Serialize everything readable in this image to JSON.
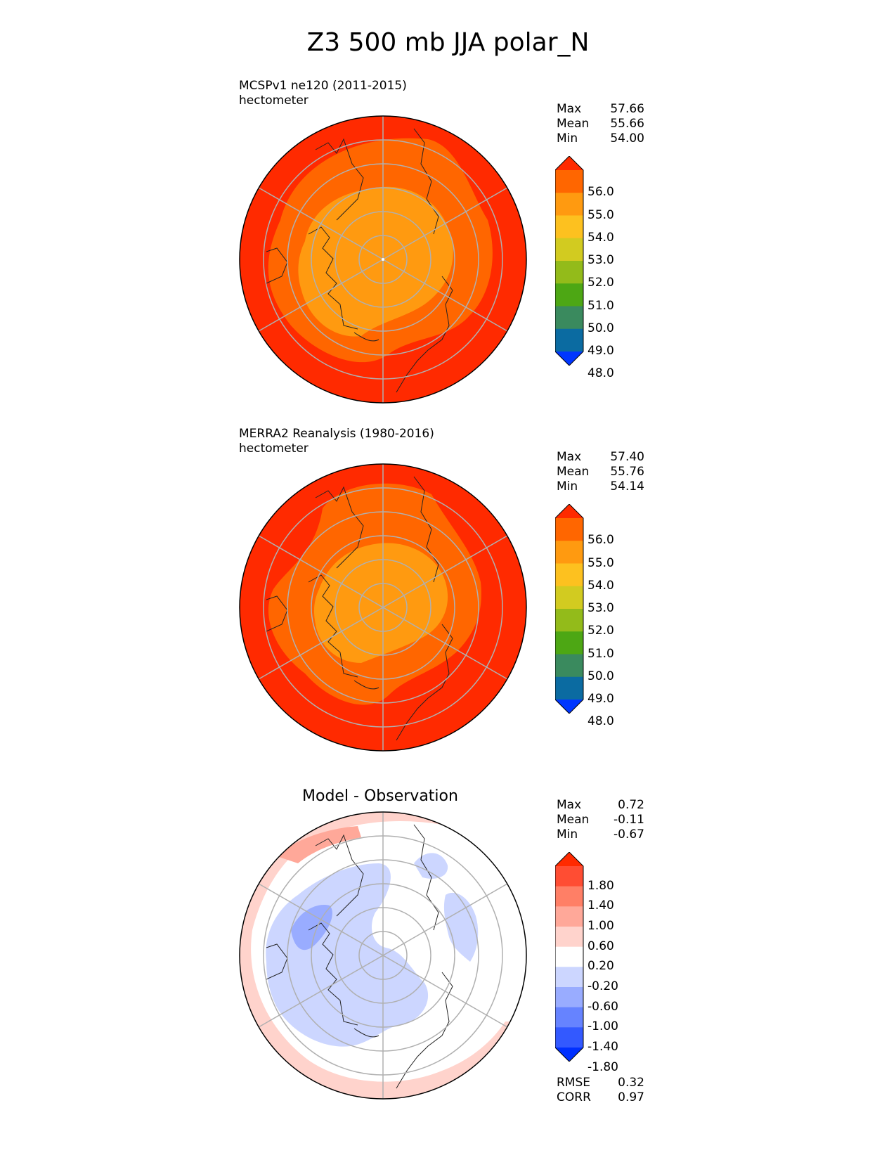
{
  "title": "Z3 500 mb JJA polar_N",
  "panels": [
    {
      "name": "test",
      "label_line1": "MCSPv1 ne120 (2011-2015)",
      "label_line2": "hectometer",
      "stats": [
        {
          "label": "Max",
          "value": "57.66"
        },
        {
          "label": "Mean",
          "value": "55.66"
        },
        {
          "label": "Min",
          "value": "54.00"
        }
      ]
    },
    {
      "name": "reference",
      "label_line1": "MERRA2 Reanalysis (1980-2016)",
      "label_line2": "hectometer",
      "stats": [
        {
          "label": "Max",
          "value": "57.40"
        },
        {
          "label": "Mean",
          "value": "55.76"
        },
        {
          "label": "Min",
          "value": "54.14"
        }
      ]
    },
    {
      "name": "difference",
      "label_line1": "Model - Observation",
      "stats": [
        {
          "label": "Max",
          "value": "0.72"
        },
        {
          "label": "Mean",
          "value": "-0.11"
        },
        {
          "label": "Min",
          "value": "-0.67"
        }
      ],
      "metrics": [
        {
          "label": "RMSE",
          "value": "0.32"
        },
        {
          "label": "CORR",
          "value": "0.97"
        }
      ]
    }
  ],
  "colorbar_main": {
    "ticks": [
      "56.0",
      "55.0",
      "54.0",
      "53.0",
      "52.0",
      "51.0",
      "50.0",
      "49.0",
      "48.0"
    ],
    "colors": [
      "#ff2a00",
      "#ff6600",
      "#ff9a10",
      "#fdc11f",
      "#d2cb20",
      "#93bb1a",
      "#4da714",
      "#3a8a5e",
      "#0b6ba1",
      "#0036ff"
    ]
  },
  "colorbar_diff": {
    "ticks": [
      "1.80",
      "1.40",
      "1.00",
      "0.60",
      "0.20",
      "-0.20",
      "-0.60",
      "-1.00",
      "-1.40",
      "-1.80"
    ],
    "colors": [
      "#ff2a00",
      "#ff4d33",
      "#ff7f66",
      "#ffa899",
      "#ffd3cc",
      "#ffffff",
      "#ccd6ff",
      "#99acff",
      "#6683ff",
      "#3359ff",
      "#0030ff"
    ]
  },
  "chart_data": [
    {
      "type": "heatmap",
      "title": "MCSPv1 ne120 (2011-2015)",
      "units": "hectometer",
      "projection": "polar stereographic, north pole",
      "max": 57.66,
      "mean": 55.66,
      "min": 54.0,
      "levels": [
        48,
        49,
        50,
        51,
        52,
        53,
        54,
        55,
        56
      ]
    },
    {
      "type": "heatmap",
      "title": "MERRA2 Reanalysis (1980-2016)",
      "units": "hectometer",
      "projection": "polar stereographic, north pole",
      "max": 57.4,
      "mean": 55.76,
      "min": 54.14,
      "levels": [
        48,
        49,
        50,
        51,
        52,
        53,
        54,
        55,
        56
      ]
    },
    {
      "type": "heatmap",
      "title": "Model - Observation",
      "projection": "polar stereographic, north pole",
      "max": 0.72,
      "mean": -0.11,
      "min": -0.67,
      "rmse": 0.32,
      "corr": 0.97,
      "levels": [
        -1.8,
        -1.4,
        -1.0,
        -0.6,
        -0.2,
        0.2,
        0.6,
        1.0,
        1.4,
        1.8
      ]
    }
  ]
}
